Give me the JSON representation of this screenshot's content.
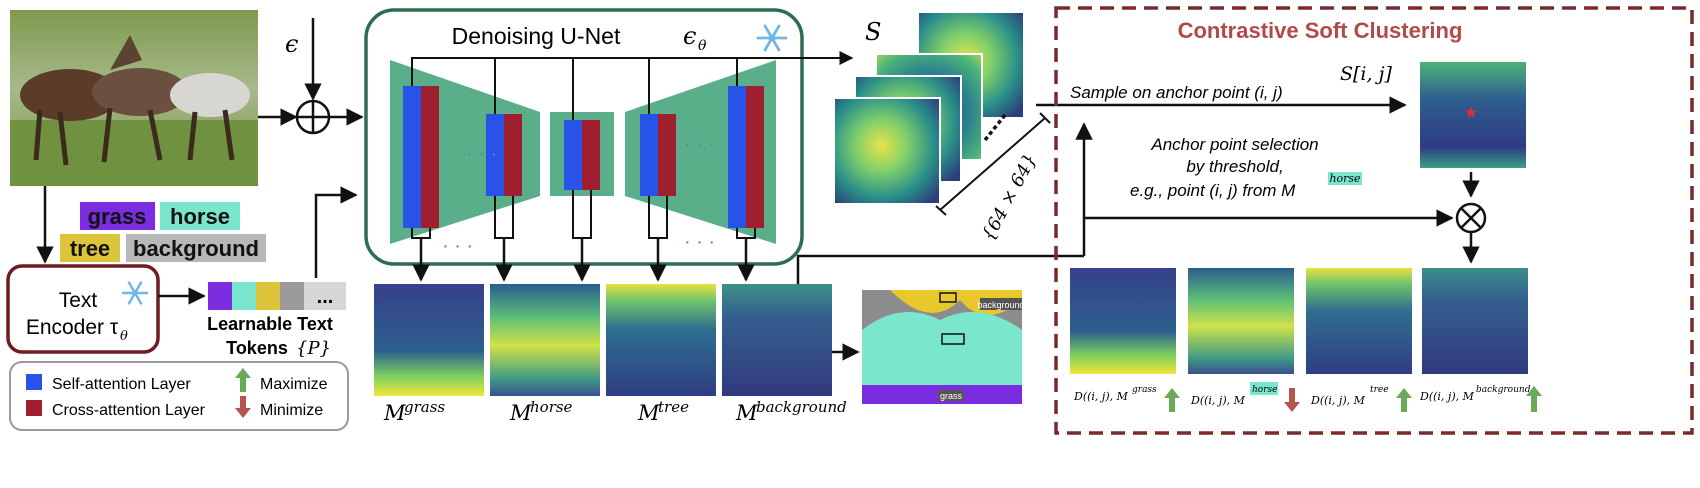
{
  "colors": {
    "self_attention": "#2753e8",
    "cross_attention": "#a01f2e",
    "unet_fill": "#5aae8a",
    "unet_border": "#2e6e4e",
    "encoder_border": "#6e1c20",
    "clustering_border": "#7a2a2a",
    "clustering_title": "#b24a47",
    "token_purple": "#7b2be0",
    "token_teal": "#7ae6cc",
    "token_yellow": "#dcc53a",
    "token_gray": "#9a9a9a",
    "token_lightgray": "#d0d0d0",
    "arrow_up": "#6aa85a",
    "arrow_down": "#b5544c"
  },
  "inputs": {
    "epsilon": "ϵ",
    "horse_photo_icon": "photo-of-running-horses"
  },
  "tokens": {
    "grass": "grass",
    "horse": "horse",
    "tree": "tree",
    "background": "background"
  },
  "text_encoder": {
    "line1": "Text",
    "line2": "Encoder τ",
    "subscript": "θ",
    "frozen_icon": "snowflake-icon"
  },
  "learnable_tokens": {
    "line1": "Learnable Text",
    "line2": "Tokens",
    "set": "{P}",
    "ellipsis": "..."
  },
  "legend": {
    "self_attention": "Self-attention Layer",
    "cross_attention": "Cross-attention Layer",
    "maximize": "Maximize",
    "minimize": "Minimize"
  },
  "unet": {
    "title": "Denoising U-Net",
    "symbol": "ϵ",
    "symbol_sub": "θ",
    "frozen_icon": "snowflake-icon"
  },
  "self_attn_maps": {
    "label": "S",
    "size_label": "{64 × 64}"
  },
  "attention_maps": {
    "prefix": "M",
    "items": [
      "grass",
      "horse",
      "tree",
      "background"
    ]
  },
  "segmentation": {
    "label_background": "background",
    "label_grass": "grass"
  },
  "clustering": {
    "title": "Contrastive Soft Clustering",
    "sample_text": "Sample on anchor point (i, j)",
    "sample_label": "S[i, j]",
    "anchor_line1": "Anchor point selection",
    "anchor_line2": "by threshold,",
    "anchor_line3": "e.g., point (i, j) from M",
    "anchor_sup": "horse",
    "distance_prefix": "D((i, j), M",
    "distance_items": [
      "grass",
      "horse",
      "tree",
      "background"
    ]
  }
}
